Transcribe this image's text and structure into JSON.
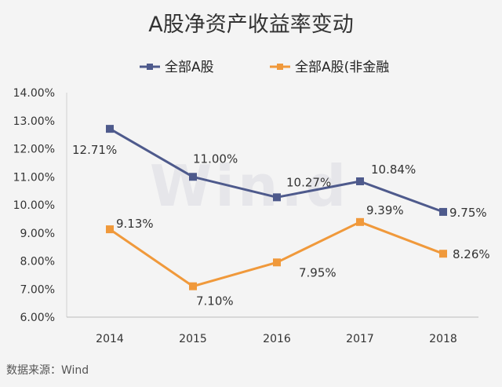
{
  "chart_data": {
    "type": "line",
    "title": "A股净资产收益率变动",
    "categories": [
      "2014",
      "2015",
      "2016",
      "2017",
      "2018"
    ],
    "series": [
      {
        "name": "全部A股",
        "color": "#4e5a8c",
        "values": [
          12.71,
          11.0,
          10.27,
          10.84,
          9.75
        ],
        "labels": [
          "12.71%",
          "11.00%",
          "10.27%",
          "10.84%",
          "9.75%"
        ]
      },
      {
        "name": "全部A股(非金融",
        "color": "#f0993b",
        "values": [
          9.13,
          7.1,
          7.95,
          9.39,
          8.26
        ],
        "labels": [
          "9.13%",
          "7.10%",
          "7.95%",
          "9.39%",
          "8.26%"
        ]
      }
    ],
    "ylim": [
      6.0,
      14.0
    ],
    "yticks": [
      "6.00%",
      "7.00%",
      "8.00%",
      "9.00%",
      "10.00%",
      "11.00%",
      "12.00%",
      "13.00%",
      "14.00%"
    ],
    "xlabel": "",
    "ylabel": "",
    "grid": false,
    "legend": "top"
  },
  "watermark": "Win.d",
  "source": "数据来源：Wind"
}
